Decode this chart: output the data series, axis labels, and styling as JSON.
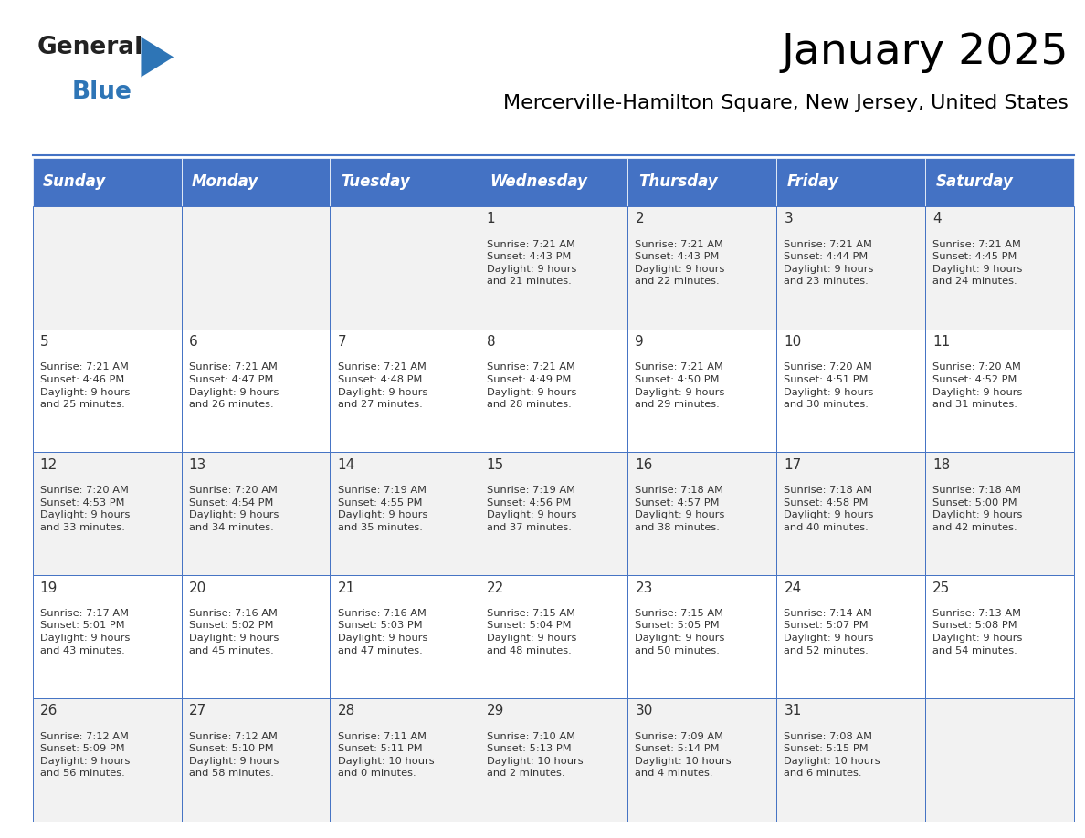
{
  "title": "January 2025",
  "subtitle": "Mercerville-Hamilton Square, New Jersey, United States",
  "days_of_week": [
    "Sunday",
    "Monday",
    "Tuesday",
    "Wednesday",
    "Thursday",
    "Friday",
    "Saturday"
  ],
  "header_bg": "#4472C4",
  "header_text": "#FFFFFF",
  "cell_bg_odd": "#F2F2F2",
  "cell_bg_even": "#FFFFFF",
  "border_color": "#4472C4",
  "text_color": "#333333",
  "title_color": "#000000",
  "subtitle_color": "#000000",
  "logo_general_color": "#222222",
  "logo_blue_color": "#2E75B6",
  "calendar": [
    [
      {
        "day": null,
        "info": ""
      },
      {
        "day": null,
        "info": ""
      },
      {
        "day": null,
        "info": ""
      },
      {
        "day": 1,
        "info": "Sunrise: 7:21 AM\nSunset: 4:43 PM\nDaylight: 9 hours\nand 21 minutes."
      },
      {
        "day": 2,
        "info": "Sunrise: 7:21 AM\nSunset: 4:43 PM\nDaylight: 9 hours\nand 22 minutes."
      },
      {
        "day": 3,
        "info": "Sunrise: 7:21 AM\nSunset: 4:44 PM\nDaylight: 9 hours\nand 23 minutes."
      },
      {
        "day": 4,
        "info": "Sunrise: 7:21 AM\nSunset: 4:45 PM\nDaylight: 9 hours\nand 24 minutes."
      }
    ],
    [
      {
        "day": 5,
        "info": "Sunrise: 7:21 AM\nSunset: 4:46 PM\nDaylight: 9 hours\nand 25 minutes."
      },
      {
        "day": 6,
        "info": "Sunrise: 7:21 AM\nSunset: 4:47 PM\nDaylight: 9 hours\nand 26 minutes."
      },
      {
        "day": 7,
        "info": "Sunrise: 7:21 AM\nSunset: 4:48 PM\nDaylight: 9 hours\nand 27 minutes."
      },
      {
        "day": 8,
        "info": "Sunrise: 7:21 AM\nSunset: 4:49 PM\nDaylight: 9 hours\nand 28 minutes."
      },
      {
        "day": 9,
        "info": "Sunrise: 7:21 AM\nSunset: 4:50 PM\nDaylight: 9 hours\nand 29 minutes."
      },
      {
        "day": 10,
        "info": "Sunrise: 7:20 AM\nSunset: 4:51 PM\nDaylight: 9 hours\nand 30 minutes."
      },
      {
        "day": 11,
        "info": "Sunrise: 7:20 AM\nSunset: 4:52 PM\nDaylight: 9 hours\nand 31 minutes."
      }
    ],
    [
      {
        "day": 12,
        "info": "Sunrise: 7:20 AM\nSunset: 4:53 PM\nDaylight: 9 hours\nand 33 minutes."
      },
      {
        "day": 13,
        "info": "Sunrise: 7:20 AM\nSunset: 4:54 PM\nDaylight: 9 hours\nand 34 minutes."
      },
      {
        "day": 14,
        "info": "Sunrise: 7:19 AM\nSunset: 4:55 PM\nDaylight: 9 hours\nand 35 minutes."
      },
      {
        "day": 15,
        "info": "Sunrise: 7:19 AM\nSunset: 4:56 PM\nDaylight: 9 hours\nand 37 minutes."
      },
      {
        "day": 16,
        "info": "Sunrise: 7:18 AM\nSunset: 4:57 PM\nDaylight: 9 hours\nand 38 minutes."
      },
      {
        "day": 17,
        "info": "Sunrise: 7:18 AM\nSunset: 4:58 PM\nDaylight: 9 hours\nand 40 minutes."
      },
      {
        "day": 18,
        "info": "Sunrise: 7:18 AM\nSunset: 5:00 PM\nDaylight: 9 hours\nand 42 minutes."
      }
    ],
    [
      {
        "day": 19,
        "info": "Sunrise: 7:17 AM\nSunset: 5:01 PM\nDaylight: 9 hours\nand 43 minutes."
      },
      {
        "day": 20,
        "info": "Sunrise: 7:16 AM\nSunset: 5:02 PM\nDaylight: 9 hours\nand 45 minutes."
      },
      {
        "day": 21,
        "info": "Sunrise: 7:16 AM\nSunset: 5:03 PM\nDaylight: 9 hours\nand 47 minutes."
      },
      {
        "day": 22,
        "info": "Sunrise: 7:15 AM\nSunset: 5:04 PM\nDaylight: 9 hours\nand 48 minutes."
      },
      {
        "day": 23,
        "info": "Sunrise: 7:15 AM\nSunset: 5:05 PM\nDaylight: 9 hours\nand 50 minutes."
      },
      {
        "day": 24,
        "info": "Sunrise: 7:14 AM\nSunset: 5:07 PM\nDaylight: 9 hours\nand 52 minutes."
      },
      {
        "day": 25,
        "info": "Sunrise: 7:13 AM\nSunset: 5:08 PM\nDaylight: 9 hours\nand 54 minutes."
      }
    ],
    [
      {
        "day": 26,
        "info": "Sunrise: 7:12 AM\nSunset: 5:09 PM\nDaylight: 9 hours\nand 56 minutes."
      },
      {
        "day": 27,
        "info": "Sunrise: 7:12 AM\nSunset: 5:10 PM\nDaylight: 9 hours\nand 58 minutes."
      },
      {
        "day": 28,
        "info": "Sunrise: 7:11 AM\nSunset: 5:11 PM\nDaylight: 10 hours\nand 0 minutes."
      },
      {
        "day": 29,
        "info": "Sunrise: 7:10 AM\nSunset: 5:13 PM\nDaylight: 10 hours\nand 2 minutes."
      },
      {
        "day": 30,
        "info": "Sunrise: 7:09 AM\nSunset: 5:14 PM\nDaylight: 10 hours\nand 4 minutes."
      },
      {
        "day": 31,
        "info": "Sunrise: 7:08 AM\nSunset: 5:15 PM\nDaylight: 10 hours\nand 6 minutes."
      },
      {
        "day": null,
        "info": ""
      }
    ]
  ]
}
